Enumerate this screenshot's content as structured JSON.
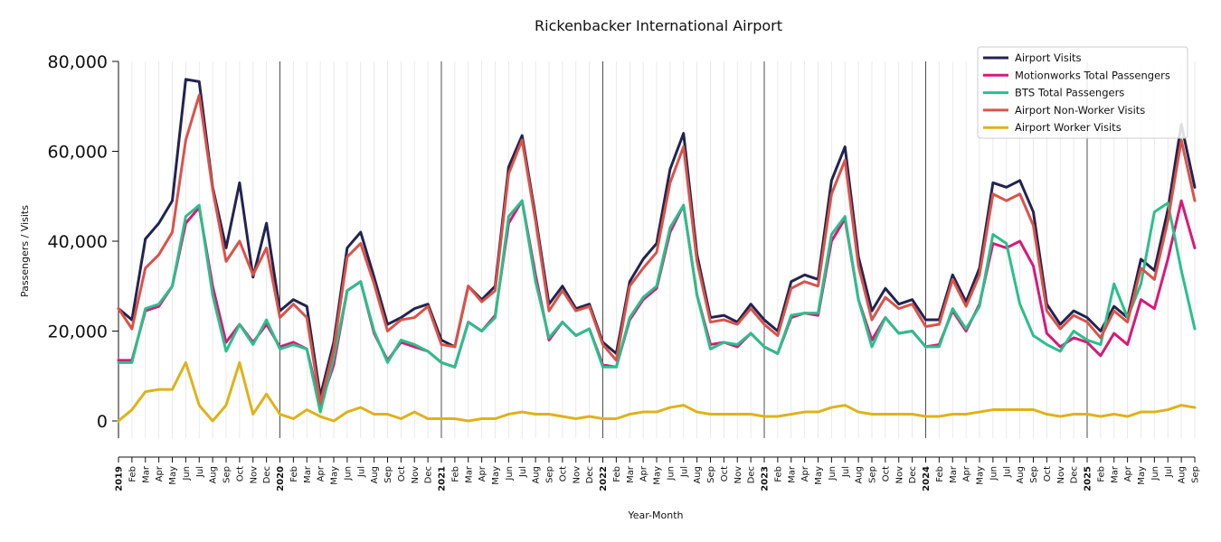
{
  "chart_data": {
    "type": "line",
    "title": "Rickenbacker International Airport",
    "xlabel": "Year-Month",
    "ylabel": "Passengers / Visits",
    "ylim": [
      -3500,
      80000
    ],
    "yticks": [
      0,
      20000,
      40000,
      60000,
      80000
    ],
    "ytick_labels": [
      "0",
      "20,000",
      "40,000",
      "60,000",
      "80,000"
    ],
    "grid": "vertical gridlines per month; darker lines at each January",
    "legend_position": "top-right",
    "x": [
      "2019",
      "Feb",
      "Mar",
      "Apr",
      "May",
      "Jun",
      "Jul",
      "Aug",
      "Sep",
      "Oct",
      "Nov",
      "Dec",
      "2020",
      "Feb",
      "Mar",
      "Apr",
      "May",
      "Jun",
      "Jul",
      "Aug",
      "Sep",
      "Oct",
      "Nov",
      "Dec",
      "2021",
      "Feb",
      "Mar",
      "Apr",
      "May",
      "Jun",
      "Jul",
      "Aug",
      "Sep",
      "Oct",
      "Nov",
      "Dec",
      "2022",
      "Feb",
      "Mar",
      "Apr",
      "May",
      "Jun",
      "Jul",
      "Aug",
      "Sep",
      "Oct",
      "Nov",
      "Dec",
      "2023",
      "Feb",
      "Mar",
      "Apr",
      "May",
      "Jun",
      "Jul",
      "Aug",
      "Sep",
      "Oct",
      "Nov",
      "Dec",
      "2024",
      "Feb",
      "Mar",
      "Apr",
      "May",
      "Jun",
      "Jul",
      "Aug",
      "Sep",
      "Oct",
      "Nov",
      "Dec",
      "2025",
      "Feb",
      "Mar",
      "Apr",
      "May",
      "Jun",
      "Jul",
      "Aug",
      "Sep"
    ],
    "series": [
      {
        "name": "Airport Visits",
        "color": "#22244f",
        "values": [
          25000,
          22500,
          40500,
          44000,
          49000,
          76000,
          75500,
          52000,
          38500,
          53000,
          32000,
          44000,
          24500,
          27000,
          25500,
          5500,
          17500,
          38500,
          42000,
          32000,
          21500,
          23000,
          25000,
          26000,
          18000,
          16500,
          30000,
          27000,
          30000,
          56500,
          63500,
          45500,
          26000,
          30000,
          25000,
          26000,
          17500,
          15000,
          31000,
          36000,
          39500,
          56000,
          64000,
          37000,
          23000,
          23500,
          22000,
          26000,
          22500,
          20000,
          31000,
          32500,
          31500,
          53500,
          61000,
          36500,
          24500,
          29500,
          26000,
          27000,
          22500,
          22500,
          32500,
          26500,
          34000,
          53000,
          52000,
          53500,
          46500,
          26000,
          21500,
          24500,
          23000,
          20000,
          25500,
          23000,
          36000,
          33500,
          47000,
          66000,
          52000
        ]
      },
      {
        "name": "Motionworks Total Passengers",
        "color": "#d6197a",
        "values": [
          13500,
          13500,
          24500,
          25500,
          30000,
          44000,
          47500,
          30000,
          17500,
          21500,
          17500,
          21500,
          16500,
          17500,
          16000,
          3500,
          12500,
          29000,
          31000,
          19500,
          13500,
          17500,
          16500,
          15500,
          13000,
          12000,
          22000,
          20000,
          23500,
          44000,
          49000,
          32500,
          18000,
          22000,
          19000,
          20500,
          12500,
          12000,
          22500,
          27000,
          29500,
          42000,
          48000,
          28000,
          17000,
          17500,
          16500,
          19500,
          16500,
          15000,
          23000,
          24000,
          23500,
          40000,
          45000,
          27000,
          18000,
          23000,
          19500,
          20000,
          16500,
          17000,
          24500,
          20000,
          26000,
          39500,
          38500,
          40000,
          34500,
          19500,
          16500,
          18500,
          17500,
          14500,
          19500,
          17000,
          27000,
          25000,
          36000,
          49000,
          38500
        ]
      },
      {
        "name": "BTS Total Passengers",
        "color": "#2bbf8a",
        "values": [
          13000,
          13000,
          25000,
          26000,
          30000,
          45500,
          48000,
          28000,
          15500,
          21500,
          17000,
          22500,
          16000,
          17000,
          16000,
          2000,
          14000,
          29000,
          31000,
          20000,
          13000,
          18000,
          17000,
          15500,
          13000,
          12000,
          22000,
          20000,
          23000,
          45500,
          49000,
          31000,
          18500,
          22000,
          19000,
          20500,
          12000,
          12000,
          23000,
          27500,
          30000,
          43000,
          48000,
          28000,
          16000,
          17500,
          17000,
          19500,
          16500,
          15000,
          23500,
          24000,
          24000,
          41500,
          45500,
          27000,
          16500,
          23000,
          19500,
          20000,
          16500,
          16500,
          25000,
          20500,
          25500,
          41500,
          39500,
          26000,
          19000,
          17000,
          15500,
          20000,
          18000,
          17000,
          30500,
          23000,
          30500,
          46500,
          48500,
          33500,
          20500
        ]
      },
      {
        "name": "Airport Non-Worker Visits",
        "color": "#d9534b",
        "values": [
          25000,
          20500,
          34000,
          37000,
          42000,
          62500,
          72500,
          51500,
          35500,
          40000,
          32500,
          38500,
          23000,
          26000,
          23000,
          4000,
          16000,
          36500,
          39500,
          30500,
          20000,
          22500,
          23000,
          25500,
          17000,
          16500,
          30000,
          26500,
          29000,
          55000,
          62500,
          44500,
          24500,
          29000,
          24500,
          25500,
          17000,
          13500,
          30000,
          34000,
          37500,
          53000,
          61000,
          35500,
          22000,
          22500,
          21500,
          25000,
          21500,
          19000,
          29500,
          31000,
          30000,
          50500,
          58000,
          34500,
          22500,
          27500,
          25000,
          26000,
          21000,
          21500,
          31500,
          25500,
          32500,
          50500,
          49000,
          50500,
          43500,
          24500,
          20500,
          23500,
          22000,
          18500,
          24500,
          22000,
          34000,
          31500,
          44500,
          62500,
          49000
        ]
      },
      {
        "name": "Airport Worker Visits",
        "color": "#ddb31a",
        "values": [
          0,
          2500,
          6500,
          7000,
          7000,
          13000,
          3500,
          0,
          3500,
          13000,
          1500,
          6000,
          1500,
          500,
          2500,
          1000,
          0,
          2000,
          3000,
          1500,
          1500,
          500,
          2000,
          500,
          500,
          500,
          0,
          500,
          500,
          1500,
          2000,
          1500,
          1500,
          1000,
          500,
          1000,
          500,
          500,
          1500,
          2000,
          2000,
          3000,
          3500,
          2000,
          1500,
          1500,
          1500,
          1500,
          1000,
          1000,
          1500,
          2000,
          2000,
          3000,
          3500,
          2000,
          1500,
          1500,
          1500,
          1500,
          1000,
          1000,
          1500,
          1500,
          2000,
          2500,
          2500,
          2500,
          2500,
          1500,
          1000,
          1500,
          1500,
          1000,
          1500,
          1000,
          2000,
          2000,
          2500,
          3500,
          3000
        ]
      }
    ]
  }
}
